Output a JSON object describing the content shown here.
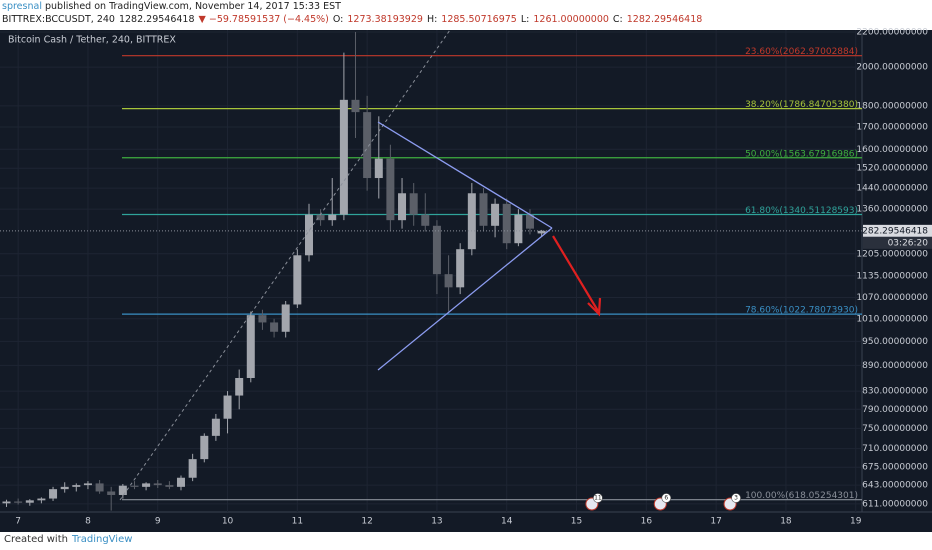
{
  "header": {
    "author": "spresnal",
    "published": "published on TradingView.com, November 14, 2017 15:33 EST",
    "symbol": "BITTREX:BCCUSDT, 240",
    "price": "1282.29546418",
    "change": "▼ −59.78591537 (−4.45%)",
    "ohlc": [
      {
        "label": "O:",
        "value": "1273.38193929"
      },
      {
        "label": "H:",
        "value": "1285.50716975"
      },
      {
        "label": "L:",
        "value": "1261.00000000"
      },
      {
        "label": "C:",
        "value": "1282.29546418"
      }
    ]
  },
  "footer": {
    "created": "Created with",
    "brand": "TradingView"
  },
  "chart_data": {
    "type": "candlestick",
    "title": "Bitcoin Cash / Tether, 240, BITTREX",
    "log_scale": true,
    "grid": true,
    "up_color": "#a3a6ad",
    "down_color": "#5b5f68",
    "xlim": [
      6.74,
      19.09
    ],
    "xticks": [
      7,
      8,
      9,
      10,
      11,
      12,
      13,
      14,
      15,
      16,
      17,
      18,
      19
    ],
    "ylim": [
      601,
      2212
    ],
    "yticks": [
      {
        "value": 2200,
        "label": "2200.00000000"
      },
      {
        "value": 2000,
        "label": "2000.00000000"
      },
      {
        "value": 1800,
        "label": "1800.00000000"
      },
      {
        "value": 1700,
        "label": "1700.00000000"
      },
      {
        "value": 1600,
        "label": "1600.00000000"
      },
      {
        "value": 1520,
        "label": "1520.00000000"
      },
      {
        "value": 1440,
        "label": "1440.00000000"
      },
      {
        "value": 1360,
        "label": "1360.00000000"
      },
      {
        "value": 1205,
        "label": "1205.00000000"
      },
      {
        "value": 1135,
        "label": "1135.00000000"
      },
      {
        "value": 1070,
        "label": "1070.00000000"
      },
      {
        "value": 1010,
        "label": "1010.00000000"
      },
      {
        "value": 950,
        "label": "950.00000000"
      },
      {
        "value": 890,
        "label": "890.00000000"
      },
      {
        "value": 830,
        "label": "830.00000000"
      },
      {
        "value": 790,
        "label": "790.00000000"
      },
      {
        "value": 750,
        "label": "750.00000000"
      },
      {
        "value": 710,
        "label": "710.00000000"
      },
      {
        "value": 675,
        "label": "675.00000000"
      },
      {
        "value": 643,
        "label": "643.00000000"
      },
      {
        "value": 611,
        "label": "611.00000000"
      }
    ],
    "x": [
      6.833,
      7.0,
      7.167,
      7.333,
      7.5,
      7.667,
      7.833,
      8.0,
      8.167,
      8.333,
      8.5,
      8.667,
      8.833,
      9.0,
      9.167,
      9.333,
      9.5,
      9.667,
      9.833,
      10.0,
      10.167,
      10.333,
      10.5,
      10.667,
      10.833,
      11.0,
      11.167,
      11.333,
      11.5,
      11.667,
      11.833,
      12.0,
      12.167,
      12.333,
      12.5,
      12.667,
      12.833,
      13.0,
      13.167,
      13.333,
      13.5,
      13.667,
      13.833,
      14.0,
      14.167,
      14.333,
      14.5
    ],
    "open": [
      612,
      615,
      613,
      617,
      620,
      636,
      640,
      643,
      646,
      632,
      626,
      642,
      640,
      646,
      643,
      640,
      656,
      690,
      735,
      770,
      820,
      860,
      1020,
      1000,
      975,
      1050,
      1200,
      1340,
      1320,
      1340,
      1830,
      1770,
      1480,
      1560,
      1320,
      1420,
      1340,
      1300,
      1140,
      1100,
      1220,
      1420,
      1300,
      1380,
      1240,
      1340,
      1273.38193929
    ],
    "high": [
      618,
      620,
      619,
      622,
      640,
      648,
      646,
      650,
      652,
      640,
      645,
      650,
      648,
      652,
      650,
      660,
      700,
      740,
      780,
      830,
      880,
      1030,
      1035,
      1010,
      1060,
      1220,
      1380,
      1360,
      1480,
      2080,
      2200,
      1850,
      1750,
      1620,
      1480,
      1460,
      1420,
      1320,
      1200,
      1240,
      1460,
      1440,
      1400,
      1400,
      1360,
      1360,
      1285.50716975
    ],
    "low": [
      606,
      610,
      608,
      612,
      616,
      630,
      632,
      636,
      628,
      600,
      620,
      636,
      634,
      638,
      636,
      634,
      650,
      684,
      725,
      740,
      790,
      850,
      980,
      960,
      960,
      1040,
      1180,
      1300,
      1300,
      1320,
      1650,
      1430,
      1400,
      1280,
      1290,
      1300,
      1280,
      1080,
      1030,
      1080,
      1200,
      1280,
      1260,
      1220,
      1230,
      1270,
      1261
    ],
    "close": [
      615,
      613,
      617,
      620,
      636,
      640,
      643,
      646,
      632,
      626,
      642,
      640,
      646,
      643,
      640,
      656,
      690,
      735,
      770,
      820,
      860,
      1020,
      1000,
      975,
      1050,
      1200,
      1340,
      1320,
      1340,
      1830,
      1770,
      1480,
      1560,
      1320,
      1420,
      1340,
      1300,
      1140,
      1100,
      1220,
      1420,
      1300,
      1380,
      1240,
      1340,
      1290,
      1282.29546418
    ],
    "fib_levels": [
      {
        "label": "23.60%(2062.97002884)",
        "value": 2062.97002884,
        "color": "#c0392b"
      },
      {
        "label": "38.20%(1786.84705380)",
        "value": 1786.8470538,
        "color": "#a7c43a"
      },
      {
        "label": "50.00%(1563.67916986)",
        "value": 1563.67916986,
        "color": "#3fae3f"
      },
      {
        "label": "61.80%(1340.51128593)",
        "value": 1340.51128593,
        "color": "#2fa39a"
      },
      {
        "label": "78.60%(1022.78073930)",
        "value": 1022.7807393,
        "color": "#3a8fc4"
      },
      {
        "label": "100.00%(618.05254301)",
        "value": 618.05254301,
        "color": "#8a8f99"
      }
    ],
    "last_price": 1282.29546418,
    "countdown": "03:26:20",
    "events": [
      {
        "x": 15.22,
        "label": "11"
      },
      {
        "x": 16.2,
        "label": "6"
      },
      {
        "x": 17.2,
        "label": "3"
      }
    ]
  }
}
